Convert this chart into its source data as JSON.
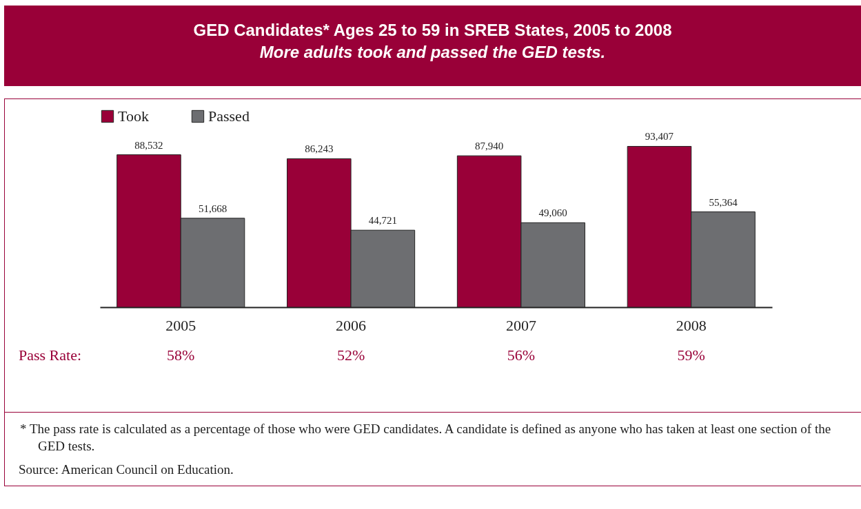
{
  "chart_data": {
    "type": "bar",
    "title": "GED Candidates* Ages 25 to 59 in SREB States, 2005 to 2008",
    "subtitle": "More adults took and passed the GED tests.",
    "categories": [
      "2005",
      "2006",
      "2007",
      "2008"
    ],
    "series": [
      {
        "name": "Took",
        "color": "#990038",
        "values": [
          88532,
          86243,
          87940,
          93407
        ],
        "value_labels": [
          "88,532",
          "86,243",
          "87,940",
          "93,407"
        ]
      },
      {
        "name": "Passed",
        "color": "#6d6e71",
        "values": [
          51668,
          44721,
          49060,
          55364
        ],
        "value_labels": [
          "51,668",
          "44,721",
          "49,060",
          "55,364"
        ]
      }
    ],
    "legend": "top",
    "grid": false,
    "annotations": [
      "Pass Rate:",
      "58%",
      "52%",
      "56%",
      "59%",
      "*  The pass rate is calculated as a percentage of those who were GED candidates. A candidate is defined as anyone who has taken at least one section of the GED tests.",
      "Source: American Council on Education."
    ]
  }
}
